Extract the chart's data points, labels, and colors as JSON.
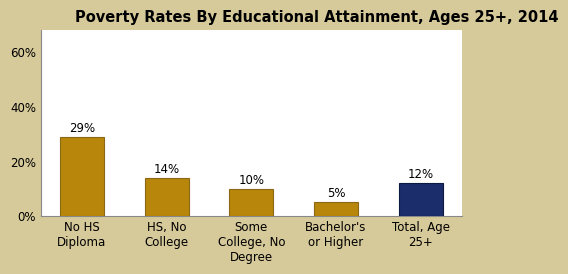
{
  "title": "Poverty Rates By Educational Attainment, Ages 25+, 2014",
  "categories": [
    "No HS\nDiploma",
    "HS, No\nCollege",
    "Some\nCollege, No\nDegree",
    "Bachelor's\nor Higher",
    "Total, Age\n25+"
  ],
  "values": [
    29,
    14,
    10,
    5,
    12
  ],
  "bar_colors": [
    "#B8860B",
    "#B8860B",
    "#B8860B",
    "#B8860B",
    "#1C2D6B"
  ],
  "bar_edge_colors": [
    "#8B6914",
    "#8B6914",
    "#8B6914",
    "#8B6914",
    "#0D1A40"
  ],
  "ylim": [
    0,
    68
  ],
  "yticks": [
    0,
    20,
    40,
    60
  ],
  "ytick_labels": [
    "0%",
    "20%",
    "40%",
    "60%"
  ],
  "title_fontsize": 10.5,
  "label_fontsize": 8.5,
  "tick_fontsize": 8.5,
  "background_color": "#D6C99A",
  "plot_bg_color": "#FFFFFF",
  "border_color": "#C4B07A"
}
